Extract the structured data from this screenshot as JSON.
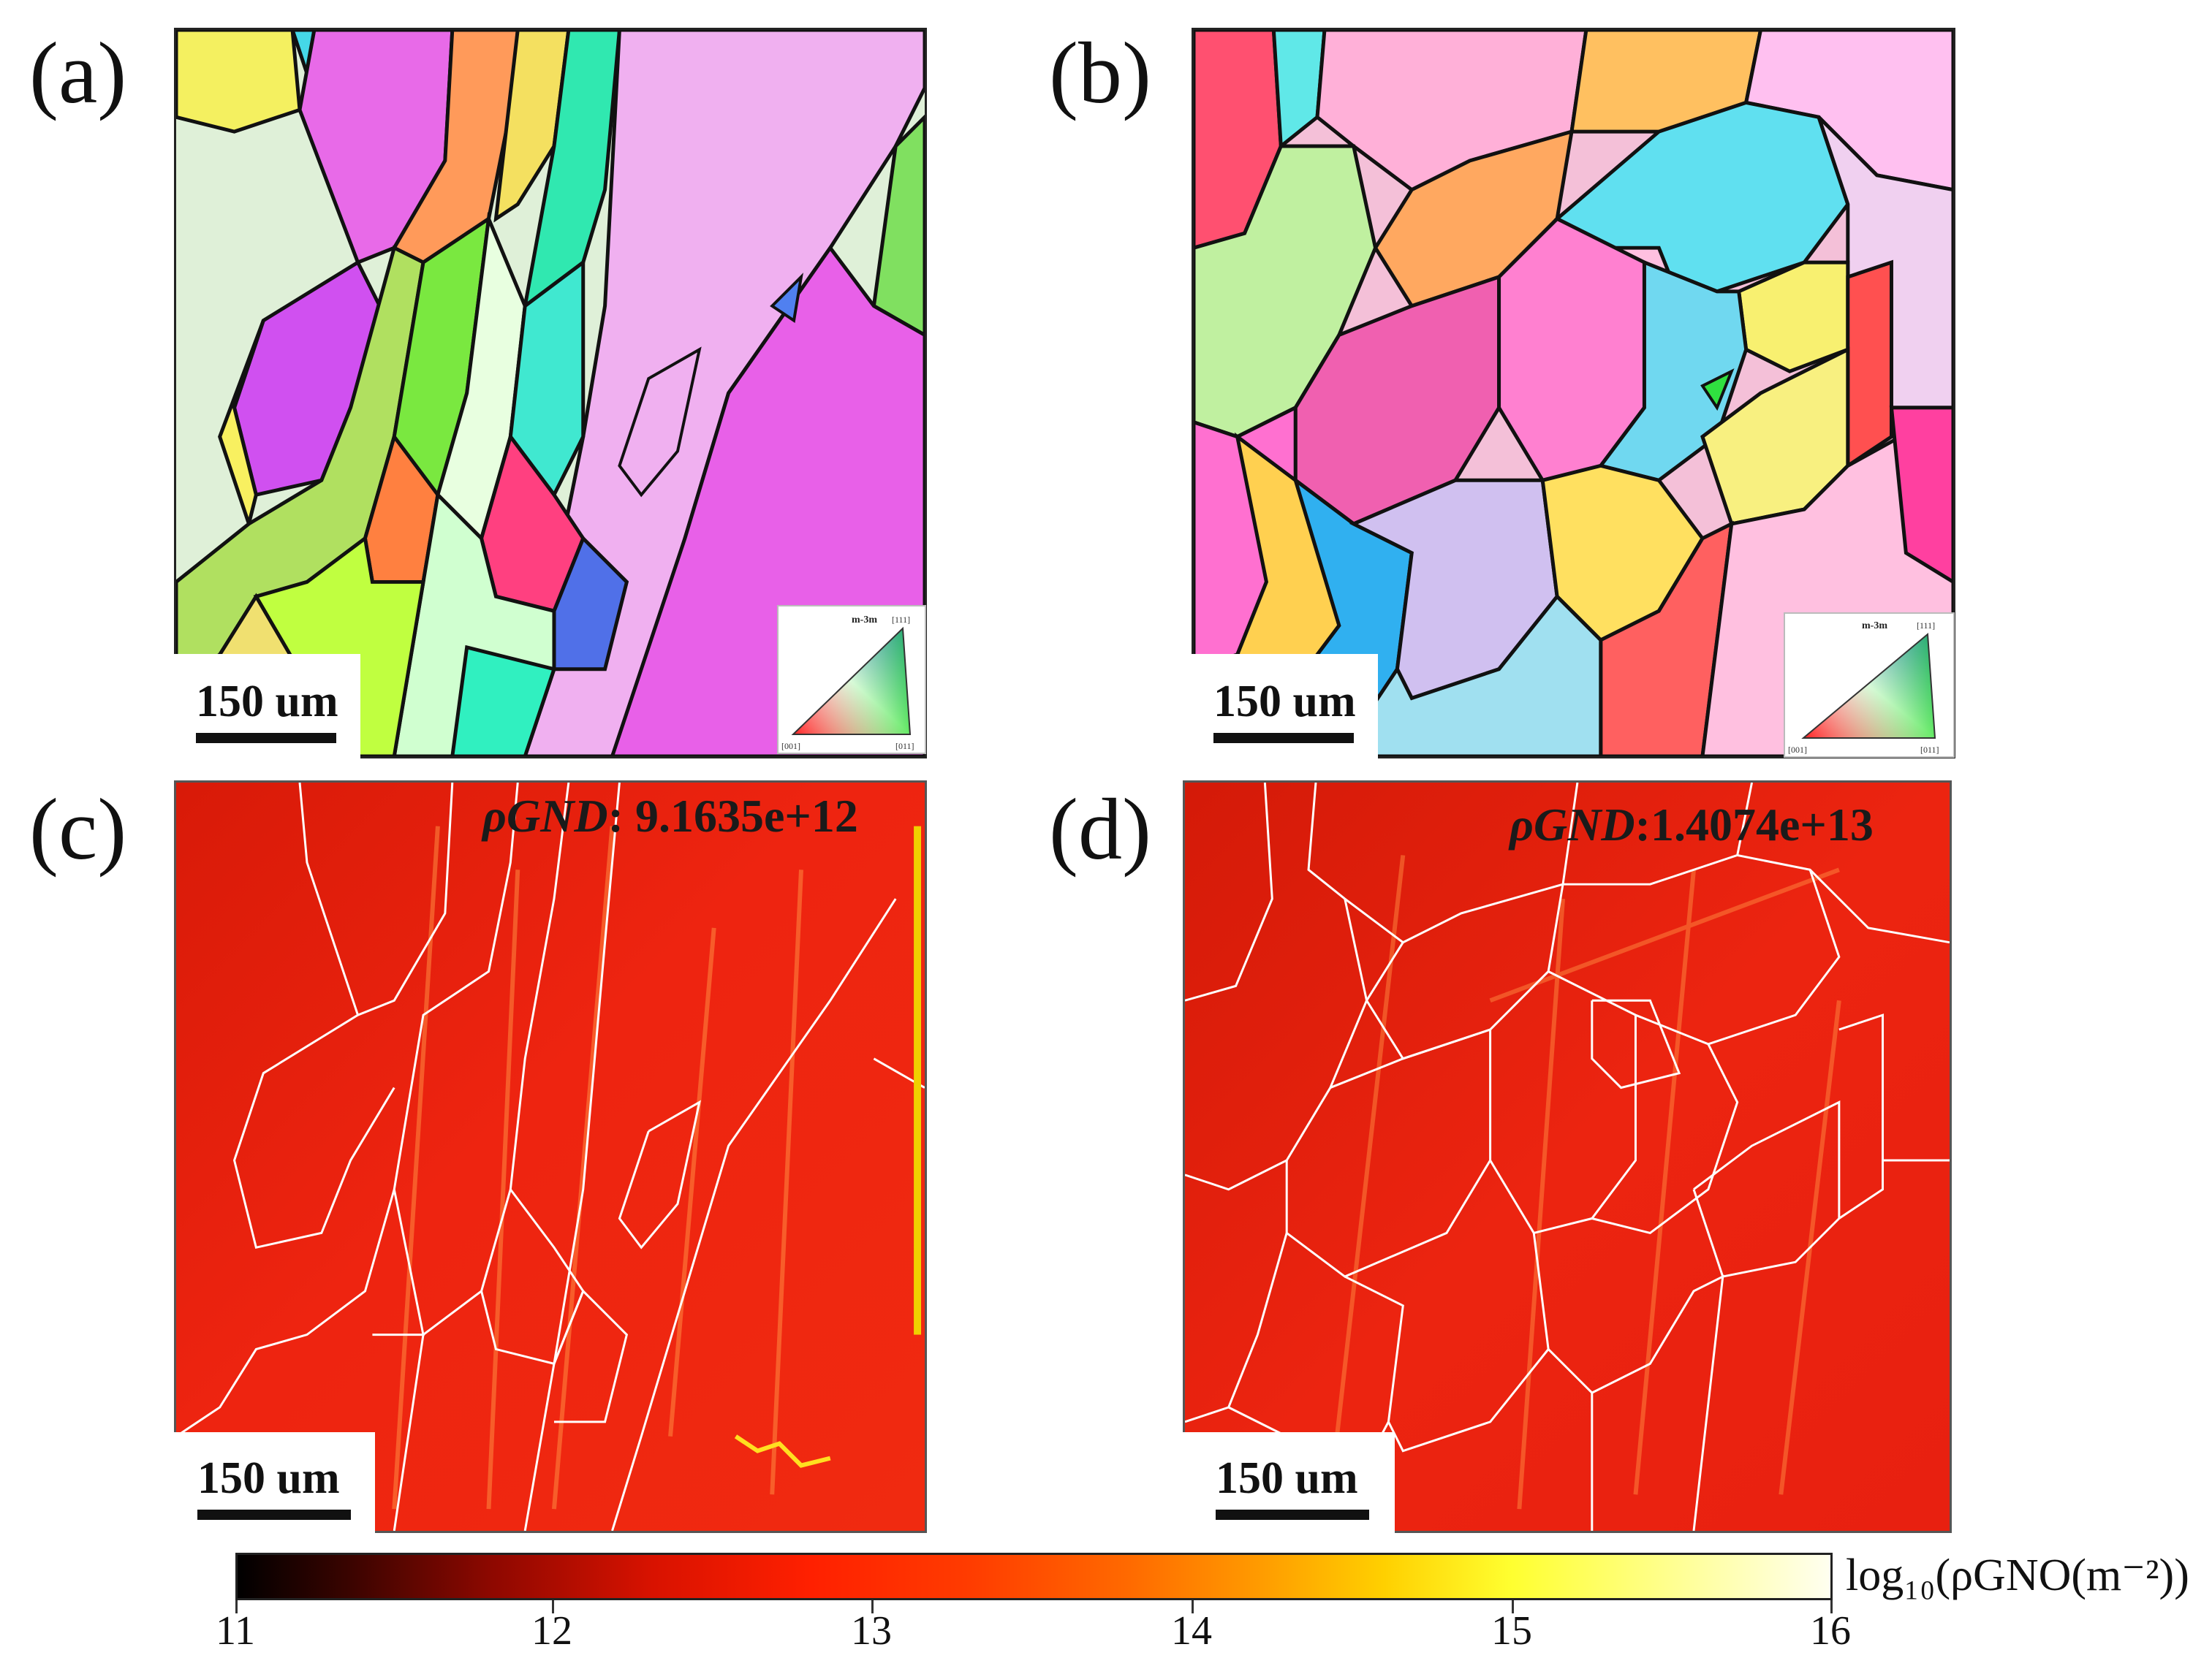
{
  "panels": {
    "a": {
      "label": "(a)",
      "scale": "150 um"
    },
    "b": {
      "label": "(b)",
      "scale": "150 um"
    },
    "c": {
      "label": "(c)",
      "scale": "150 um",
      "gnd_symbol": "ρGND",
      "gnd_value": ": 9.1635e+12"
    },
    "d": {
      "label": "(d)",
      "scale": "150 um",
      "gnd_symbol": "ρGND",
      "gnd_value": ":1.4074e+13"
    }
  },
  "ipf_key": {
    "title": "m-3m",
    "corner_top": "[111]",
    "corner_left": "[001]",
    "corner_right": "[011]"
  },
  "colorbar": {
    "ticks": [
      "11",
      "12",
      "13",
      "14",
      "15",
      "16"
    ],
    "title": "log₁₀(ρGNO(m⁻²))"
  },
  "colors": {
    "boundary_dark": "#111111",
    "boundary_light": "#ffffff",
    "gnd_base": "#ea1d0a"
  }
}
